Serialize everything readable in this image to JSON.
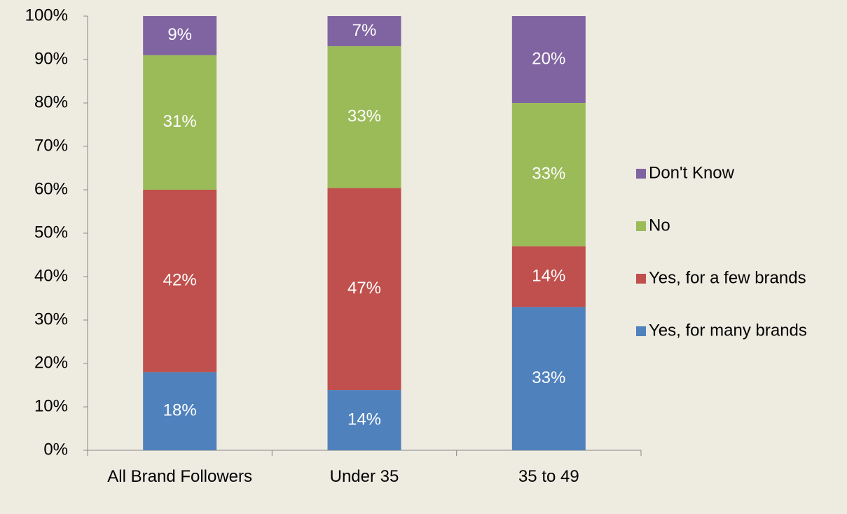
{
  "chart_data": {
    "type": "bar",
    "stacking": "percent",
    "categories": [
      "All Brand Followers",
      "Under 35",
      "35 to 49"
    ],
    "series": [
      {
        "name": "Yes, for many brands",
        "color": "#4f81bd",
        "values": [
          18,
          14,
          33
        ],
        "value_labels": [
          "18%",
          "14%",
          "33%"
        ]
      },
      {
        "name": "Yes, for a few brands",
        "color": "#c0504d",
        "values": [
          42,
          47,
          14
        ],
        "value_labels": [
          "42%",
          "47%",
          "14%"
        ]
      },
      {
        "name": "No",
        "color": "#9bbb59",
        "values": [
          31,
          33,
          33
        ],
        "value_labels": [
          "31%",
          "33%",
          "33%"
        ]
      },
      {
        "name": "Don't Know",
        "color": "#8064a2",
        "values": [
          9,
          7,
          20
        ],
        "value_labels": [
          "9%",
          "7%",
          "20%"
        ]
      }
    ],
    "ylim": [
      0,
      100
    ],
    "yticks": [
      {
        "value": 0,
        "label": "0%"
      },
      {
        "value": 10,
        "label": "10%"
      },
      {
        "value": 20,
        "label": "20%"
      },
      {
        "value": 30,
        "label": "30%"
      },
      {
        "value": 40,
        "label": "40%"
      },
      {
        "value": 50,
        "label": "50%"
      },
      {
        "value": 60,
        "label": "60%"
      },
      {
        "value": 70,
        "label": "70%"
      },
      {
        "value": 80,
        "label": "80%"
      },
      {
        "value": 90,
        "label": "90%"
      },
      {
        "value": 100,
        "label": "100%"
      }
    ],
    "grid": false,
    "legend": "right"
  }
}
